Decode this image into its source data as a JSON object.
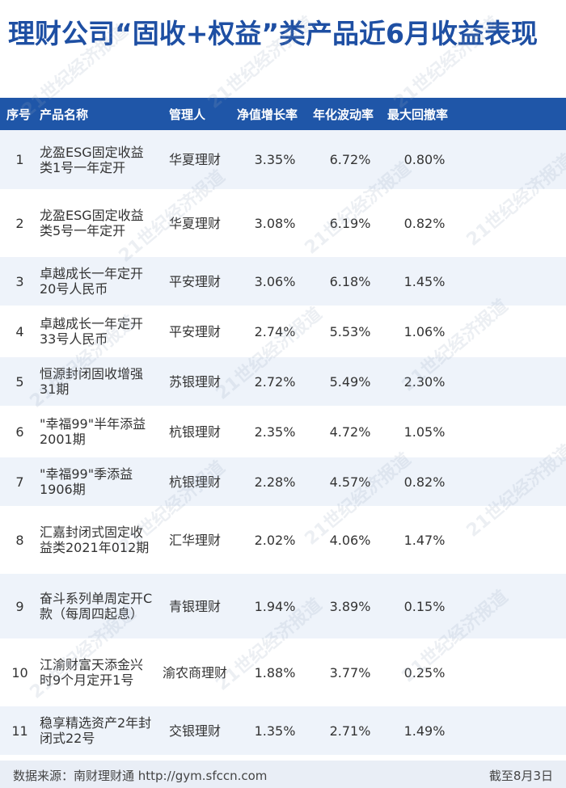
{
  "title": "理财公司“固收+权益”类产品近6月收益表现",
  "table": {
    "headers": [
      "序号",
      "产品名称",
      "管理人",
      "净值增长率",
      "年化波动率",
      "最大回撤率"
    ],
    "rows": [
      {
        "idx": "1",
        "name": "龙盈ESG固定收益类1号一年定开",
        "manager": "华夏理财",
        "growth": "3.35%",
        "volatility": "6.72%",
        "drawdown": "0.80%"
      },
      {
        "idx": "2",
        "name": "龙盈ESG固定收益类5号一年定开",
        "manager": "华夏理财",
        "growth": "3.08%",
        "volatility": "6.19%",
        "drawdown": "0.82%"
      },
      {
        "idx": "3",
        "name": "卓越成长一年定开20号人民币",
        "manager": "平安理财",
        "growth": "3.06%",
        "volatility": "6.18%",
        "drawdown": "1.45%"
      },
      {
        "idx": "4",
        "name": "卓越成长一年定开33号人民币",
        "manager": "平安理财",
        "growth": "2.74%",
        "volatility": "5.53%",
        "drawdown": "1.06%"
      },
      {
        "idx": "5",
        "name": "恒源封闭固收增强31期",
        "manager": "苏银理财",
        "growth": "2.72%",
        "volatility": "5.49%",
        "drawdown": "2.30%"
      },
      {
        "idx": "6",
        "name": "\"幸福99\"半年添益2001期",
        "manager": "杭银理财",
        "growth": "2.35%",
        "volatility": "4.72%",
        "drawdown": "1.05%"
      },
      {
        "idx": "7",
        "name": "\"幸福99\"季添益1906期",
        "manager": "杭银理财",
        "growth": "2.28%",
        "volatility": "4.57%",
        "drawdown": "0.82%"
      },
      {
        "idx": "8",
        "name": "汇嘉封闭式固定收益类2021年012期",
        "manager": "汇华理财",
        "growth": "2.02%",
        "volatility": "4.06%",
        "drawdown": "1.47%"
      },
      {
        "idx": "9",
        "name": "奋斗系列单周定开C款（每周四起息）",
        "manager": "青银理财",
        "growth": "1.94%",
        "volatility": "3.89%",
        "drawdown": "0.15%"
      },
      {
        "idx": "10",
        "name": "江渝财富天添金兴时9个月定开1号",
        "manager": "渝农商理财",
        "growth": "1.88%",
        "volatility": "3.77%",
        "drawdown": "0.25%"
      },
      {
        "idx": "11",
        "name": "稳享精选资产2年封闭式22号",
        "manager": "交银理财",
        "growth": "1.35%",
        "volatility": "2.71%",
        "drawdown": "1.49%"
      }
    ]
  },
  "footer": {
    "source": "数据来源：南财理财通 http://gym.sfccn.com",
    "date": "截至8月3日"
  },
  "watermark": "21世纪经济报道",
  "colors": {
    "title": "#1e4fa3",
    "header_bg": "#1f56a8",
    "row_alt": "#eef3fa",
    "footer_bg": "#e9eef6"
  }
}
